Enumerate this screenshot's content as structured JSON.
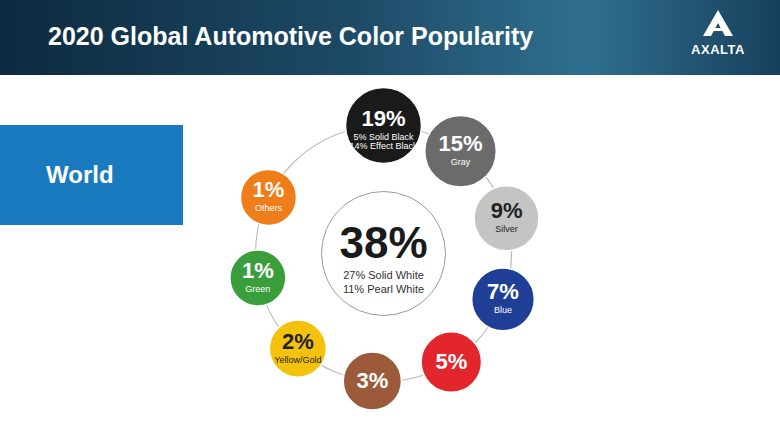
{
  "chart_data": {
    "type": "ring",
    "title": "2020 Global Automotive Color Popularity",
    "brand": "AXALTA",
    "region": "World",
    "categories": [
      null,
      "Gray",
      "Silver",
      "Blue",
      null,
      null,
      "Yellow/Gold",
      "Green",
      "Others"
    ],
    "values": [
      19,
      15,
      9,
      7,
      5,
      3,
      2,
      1,
      1
    ],
    "value_labels": [
      "19%",
      "15%",
      "9%",
      "7%",
      "5%",
      "3%",
      "2%",
      "1%",
      "1%"
    ],
    "details": [
      [
        "5% Solid Black",
        "14% Effect Black"
      ],
      null,
      null,
      null,
      null,
      null,
      null,
      null,
      null
    ],
    "colors": [
      "#1a1a1a",
      "#6b6b6b",
      "#c4c4c4",
      "#1f3f96",
      "#e3262b",
      "#9b5b3a",
      "#f4c20d",
      "#3a9e3c",
      "#ef7d1a"
    ],
    "data_labels": true,
    "center": {
      "value": 38,
      "value_label": "38%",
      "details": [
        "27% Solid White",
        "11% Pearl White"
      ],
      "color": "#ffffff"
    }
  }
}
